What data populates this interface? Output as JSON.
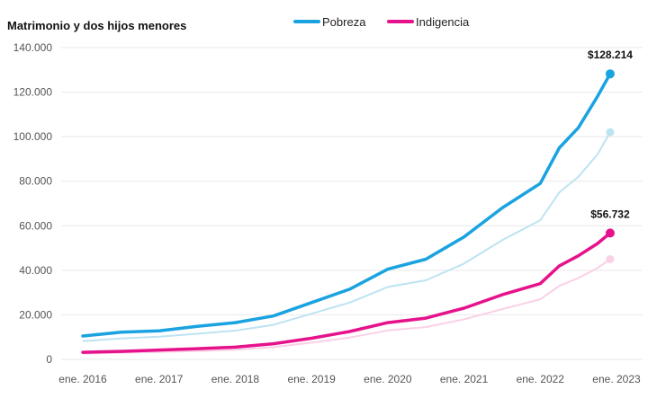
{
  "chart_data": {
    "type": "line",
    "title": "Matrimonio y dos hijos menores",
    "y_ticks": [
      "140.000",
      "120.000",
      "100.000",
      "80.000",
      "60.000",
      "40.000",
      "20.000",
      "0"
    ],
    "x_ticks": [
      "ene. 2016",
      "ene. 2017",
      "ene. 2018",
      "ene. 2019",
      "ene. 2020",
      "ene. 2021",
      "ene. 2022",
      "ene. 2023"
    ],
    "ylim": [
      0,
      140000
    ],
    "legend_position": "top-center",
    "grid": true,
    "x": [
      "2016-01",
      "2016-07",
      "2017-01",
      "2017-07",
      "2018-01",
      "2018-07",
      "2019-01",
      "2019-07",
      "2020-01",
      "2020-07",
      "2021-01",
      "2021-07",
      "2022-01",
      "2022-04",
      "2022-07",
      "2022-10",
      "2022-12"
    ],
    "series": [
      {
        "name": "Pobreza",
        "color": "#1aa3e0",
        "values": [
          10500,
          12200,
          12800,
          14800,
          16500,
          19500,
          25500,
          31500,
          40500,
          45000,
          55000,
          68000,
          79000,
          95000,
          104000,
          118000,
          128214
        ],
        "end_label": "$128.214"
      },
      {
        "name": "Indigencia",
        "color": "#e6128c",
        "values": [
          3200,
          3600,
          4200,
          4800,
          5500,
          7000,
          9500,
          12500,
          16500,
          18500,
          23000,
          29000,
          34000,
          42000,
          46500,
          52000,
          56732
        ],
        "end_label": "$56.732"
      }
    ],
    "ghost_series": [
      {
        "color": "#bde3f2",
        "values": [
          8200,
          9400,
          10200,
          11500,
          12900,
          15500,
          20500,
          25500,
          32500,
          35500,
          43000,
          53500,
          62500,
          75000,
          82000,
          92000,
          102000
        ]
      },
      {
        "color": "#fad0e6",
        "values": [
          2600,
          2900,
          3300,
          3700,
          4300,
          5500,
          7500,
          9800,
          13000,
          14500,
          18000,
          22500,
          27000,
          33000,
          36500,
          41000,
          45000
        ]
      }
    ]
  }
}
